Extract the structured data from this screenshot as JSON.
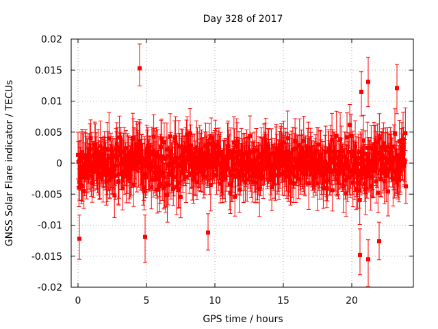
{
  "chart_data": {
    "type": "scatter",
    "title": "Day 328 of 2017",
    "xlabel": "GPS time / hours",
    "ylabel": "GNSS Solar Flare indicator / TECUs",
    "xlim": [
      -0.5,
      24.5
    ],
    "ylim": [
      -0.02,
      0.02
    ],
    "grid": true,
    "marker_color": "#ff0000",
    "x_ticks": [
      0,
      5,
      10,
      15,
      20
    ],
    "x_tick_labels": [
      "0",
      "5",
      "10",
      "15",
      "20"
    ],
    "y_ticks": [
      0.02,
      0.015,
      0.01,
      0.005,
      0,
      -0.005,
      -0.01,
      -0.015,
      -0.02
    ],
    "y_tick_labels": [
      "0.02",
      "0.015",
      "0.01",
      "0.005",
      "0",
      "-0.005",
      "-0.01",
      "-0.015",
      "-0.02"
    ],
    "series": [
      {
        "name": "indicator",
        "x_start": 0.0,
        "x_end": 23.95,
        "count": 720,
        "noise_envelope": [
          {
            "x": 0,
            "sd": 0.0042
          },
          {
            "x": 4.5,
            "sd": 0.005
          },
          {
            "x": 9,
            "sd": 0.0045
          },
          {
            "x": 12,
            "sd": 0.004
          },
          {
            "x": 16,
            "sd": 0.0035
          },
          {
            "x": 19,
            "sd": 0.0042
          },
          {
            "x": 21,
            "sd": 0.0062
          },
          {
            "x": 24,
            "sd": 0.005
          }
        ],
        "error_bar_half_width": 0.0034,
        "notable_points": [
          {
            "x": 4.5,
            "y": 0.0153
          },
          {
            "x": 21.2,
            "y": 0.0131
          },
          {
            "x": 20.7,
            "y": 0.0115
          },
          {
            "x": 23.3,
            "y": 0.0121
          },
          {
            "x": 0.1,
            "y": -0.0122
          },
          {
            "x": 21.2,
            "y": -0.0155
          },
          {
            "x": 20.6,
            "y": -0.0148
          },
          {
            "x": 22.0,
            "y": -0.0126
          },
          {
            "x": 4.9,
            "y": -0.0119
          },
          {
            "x": 9.5,
            "y": -0.0112
          }
        ]
      }
    ]
  }
}
